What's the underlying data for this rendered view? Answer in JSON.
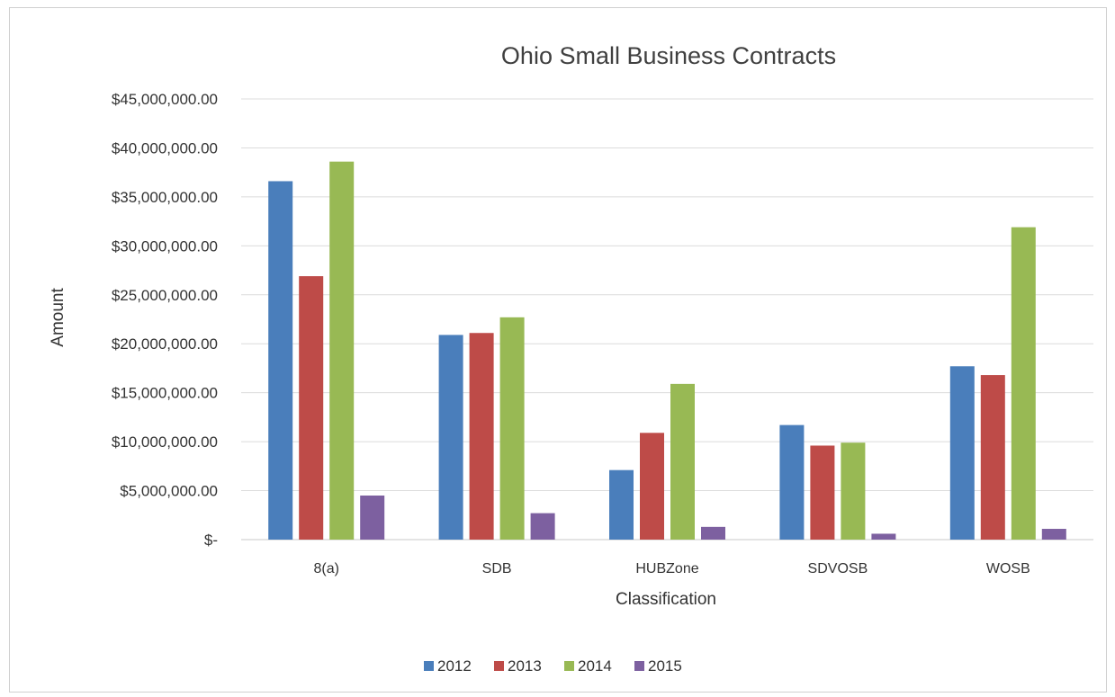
{
  "chart_data": {
    "type": "bar",
    "title": "Ohio Small Business Contracts",
    "xlabel": "Classification",
    "ylabel": "Amount",
    "categories": [
      "8(a)",
      "SDB",
      "HUBZone",
      "SDVOSB",
      "WOSB"
    ],
    "ylim": [
      0,
      45000000
    ],
    "yticks": [
      0,
      5000000,
      10000000,
      15000000,
      20000000,
      25000000,
      30000000,
      35000000,
      40000000,
      45000000
    ],
    "ytick_labels": [
      "$-",
      "$5,000,000.00",
      "$10,000,000.00",
      "$15,000,000.00",
      "$20,000,000.00",
      "$25,000,000.00",
      "$30,000,000.00",
      "$35,000,000.00",
      "$40,000,000.00",
      "$45,000,000.00"
    ],
    "grid": true,
    "legend_position": "bottom",
    "series": [
      {
        "name": "2012",
        "color": "#4a7ebb",
        "values": [
          36600000,
          20900000,
          7100000,
          11700000,
          17700000
        ]
      },
      {
        "name": "2013",
        "color": "#be4b48",
        "values": [
          26900000,
          21100000,
          10900000,
          9600000,
          16800000
        ]
      },
      {
        "name": "2014",
        "color": "#98b954",
        "values": [
          38600000,
          22700000,
          15900000,
          9900000,
          31900000
        ]
      },
      {
        "name": "2015",
        "color": "#7d60a0",
        "values": [
          4500000,
          2700000,
          1300000,
          600000,
          1100000
        ]
      }
    ]
  }
}
